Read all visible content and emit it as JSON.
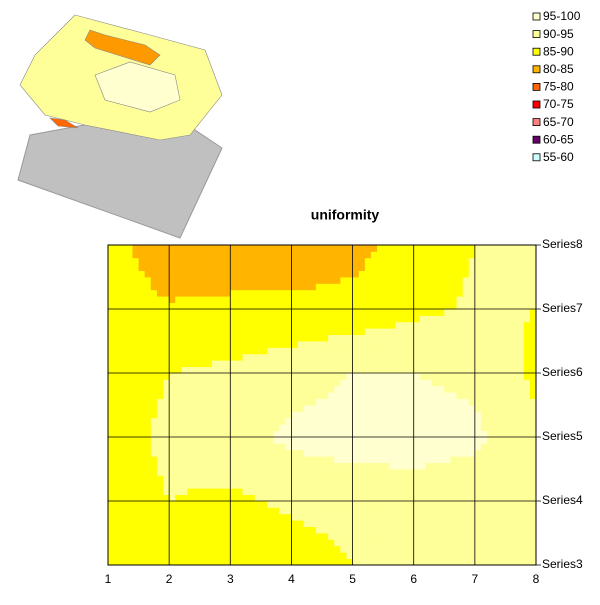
{
  "chart_data": {
    "type": "contour",
    "title": "uniformity",
    "x": [
      1,
      2,
      3,
      4,
      5,
      6,
      7,
      8
    ],
    "xlim": [
      1,
      8
    ],
    "xticks": [
      1,
      2,
      3,
      4,
      5,
      6,
      7,
      8
    ],
    "series": [
      {
        "name": "Series3",
        "values": [
          87,
          88,
          85,
          87,
          90,
          91,
          90,
          90
        ]
      },
      {
        "name": "Series4",
        "values": [
          87,
          90,
          89,
          91,
          92,
          93,
          92,
          91
        ]
      },
      {
        "name": "Series5",
        "values": [
          88,
          91,
          93,
          96,
          97,
          97,
          96,
          91
        ]
      },
      {
        "name": "Series6",
        "values": [
          88,
          90,
          91,
          93,
          95,
          95,
          94,
          89
        ]
      },
      {
        "name": "Series7",
        "values": [
          87,
          85.5,
          86,
          86,
          87,
          89,
          90.5,
          90
        ]
      },
      {
        "name": "Series8",
        "values": [
          87,
          82,
          82,
          82,
          83,
          88,
          90,
          92
        ]
      }
    ],
    "legend": [
      {
        "label": "95-100",
        "color": "#ffffd0"
      },
      {
        "label": "90-95",
        "color": "#ffff99"
      },
      {
        "label": "85-90",
        "color": "#ffff00"
      },
      {
        "label": "80-85",
        "color": "#ffb400"
      },
      {
        "label": "75-80",
        "color": "#ff6600"
      },
      {
        "label": "70-75",
        "color": "#ff0000"
      },
      {
        "label": "65-70",
        "color": "#ff8080"
      },
      {
        "label": "60-65",
        "color": "#660066"
      },
      {
        "label": "55-60",
        "color": "#ccffff"
      }
    ]
  }
}
